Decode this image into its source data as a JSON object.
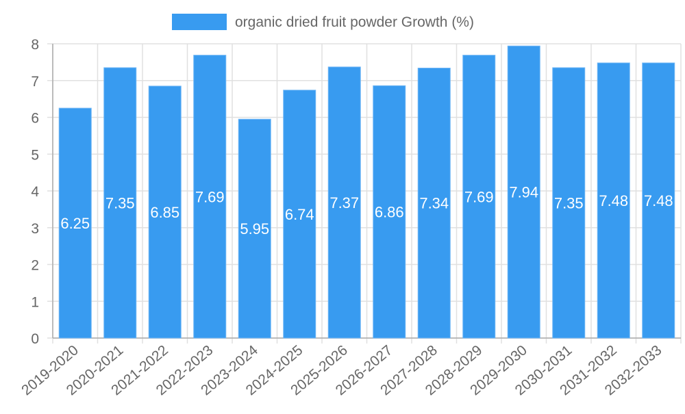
{
  "chart_data": {
    "type": "bar",
    "title": "",
    "xlabel": "",
    "ylabel": "",
    "ylim": [
      0,
      8
    ],
    "yticks": [
      0,
      1,
      2,
      3,
      4,
      5,
      6,
      7,
      8
    ],
    "grid": true,
    "legend_position": "top-center",
    "categories": [
      "2019-2020",
      "2020-2021",
      "2021-2022",
      "2022-2023",
      "2023-2024",
      "2024-2025",
      "2025-2026",
      "2026-2027",
      "2027-2028",
      "2028-2029",
      "2029-2030",
      "2030-2031",
      "2031-2032",
      "2032-2033"
    ],
    "series": [
      {
        "name": "organic dried fruit powder Growth (%)",
        "color": "#389bf0",
        "values": [
          6.25,
          7.35,
          6.85,
          7.69,
          5.95,
          6.74,
          7.37,
          6.86,
          7.34,
          7.69,
          7.94,
          7.35,
          7.48,
          7.48
        ]
      }
    ]
  }
}
